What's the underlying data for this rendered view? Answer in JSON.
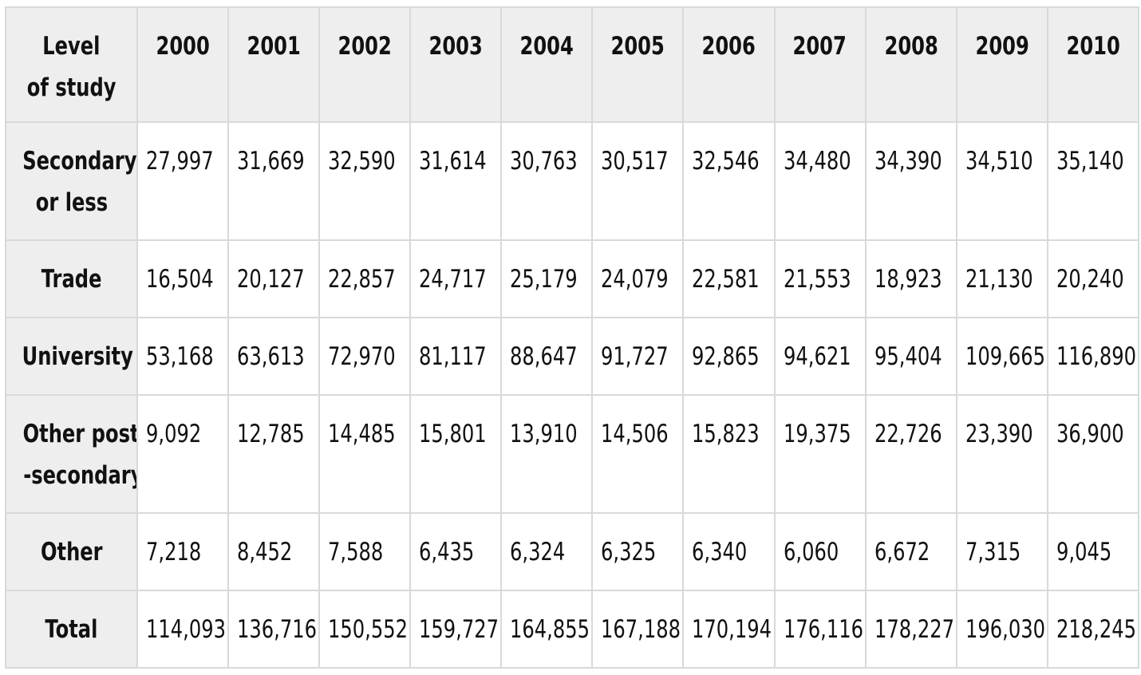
{
  "chart_data": {
    "type": "table",
    "corner_header": [
      "Level",
      "of study"
    ],
    "columns": [
      "2000",
      "2001",
      "2002",
      "2003",
      "2004",
      "2005",
      "2006",
      "2007",
      "2008",
      "2009",
      "2010"
    ],
    "rows": [
      {
        "label": [
          "Secondary",
          "or less"
        ],
        "values": [
          "27,997",
          "31,669",
          "32,590",
          "31,614",
          "30,763",
          "30,517",
          "32,546",
          "34,480",
          "34,390",
          "34,510",
          "35,140"
        ]
      },
      {
        "label": [
          "Trade"
        ],
        "values": [
          "16,504",
          "20,127",
          "22,857",
          "24,717",
          "25,179",
          "24,079",
          "22,581",
          "21,553",
          "18,923",
          "21,130",
          "20,240"
        ]
      },
      {
        "label": [
          "University"
        ],
        "values": [
          "53,168",
          "63,613",
          "72,970",
          "81,117",
          "88,647",
          "91,727",
          "92,865",
          "94,621",
          "95,404",
          "109,665",
          "116,890"
        ]
      },
      {
        "label": [
          "Other post",
          "-secondary"
        ],
        "values": [
          "9,092",
          "12,785",
          "14,485",
          "15,801",
          "13,910",
          "14,506",
          "15,823",
          "19,375",
          "22,726",
          "23,390",
          "36,900"
        ]
      },
      {
        "label": [
          "Other"
        ],
        "values": [
          "7,218",
          "8,452",
          "7,588",
          "6,435",
          "6,324",
          "6,325",
          "6,340",
          "6,060",
          "6,672",
          "7,315",
          "9,045"
        ]
      },
      {
        "label": [
          "Total"
        ],
        "values": [
          "114,093",
          "136,716",
          "150,552",
          "159,727",
          "164,855",
          "167,188",
          "170,194",
          "176,116",
          "178,227",
          "196,030",
          "218,245"
        ]
      }
    ],
    "colors": {
      "header_bg": "#eeeeee",
      "border": "#d9d9d9",
      "cell_bg": "#ffffff"
    }
  }
}
